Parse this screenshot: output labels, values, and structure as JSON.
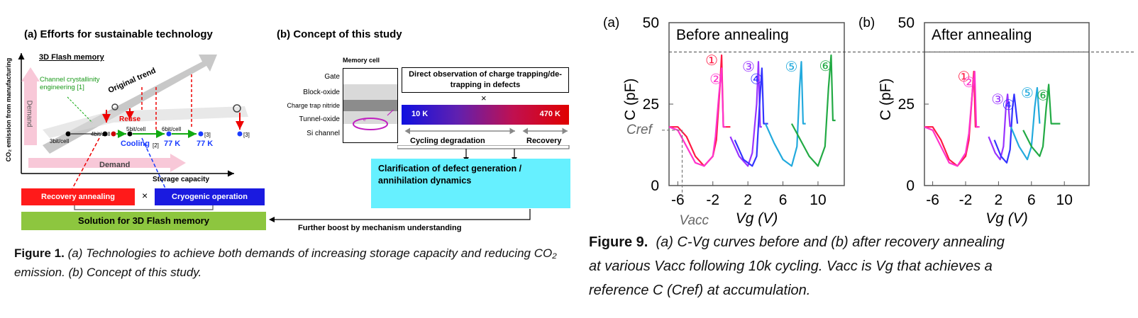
{
  "figure1": {
    "panel_a": {
      "title": "(a) Efforts for sustainable technology",
      "subtitle": "3D Flash memory",
      "ylabel": "CO₂ emission from manufacturing",
      "xlabel": "Storage capacity",
      "demand_vertical": "Demand",
      "demand_horizontal": "Demand",
      "original_trend": "Original trend",
      "channel_label": "Channel crystallinity engineering [1]",
      "reuse": "Reuse",
      "cooling": "Cooling",
      "cooling_ref": "[2]",
      "k77_a": "77 K",
      "k77_b": "77 K",
      "ref3": "[3]",
      "ref3b": "[3]",
      "node_labels": [
        "3bit/cell",
        "4bit/cell",
        "5bit/cell",
        "6bit/cell"
      ],
      "recovery": "Recovery annealing",
      "cross": "×",
      "cryogenic": "Cryogenic operation",
      "solution": "Solution for 3D Flash memory"
    },
    "panel_b": {
      "title": "(b) Concept of this study",
      "memory_cell": "Memory cell",
      "layers": [
        "Gate",
        "Block-oxide",
        "Charge trap nitride",
        "Tunnel-oxide",
        "Si channel"
      ],
      "direct_obs": "Direct observation of charge trapping/de-trapping in defects",
      "cross": "×",
      "temp_low": "10 K",
      "temp_high": "470 K",
      "cycling": "Cycling degradation",
      "recovery": "Recovery",
      "clarification": "Clarification of defect generation / annihilation dynamics",
      "boost": "Further boost by mechanism understanding"
    },
    "caption_label": "Figure 1.",
    "caption_text": "(a) Technologies to achieve both demands of increasing storage capacity and reducing CO₂ emission. (b) Concept of this study."
  },
  "figure9": {
    "caption_label": "Figure 9.",
    "caption_line1": "(a) C-Vg curves before and (b) after recovery annealing",
    "caption_line2": "at various Vacc following 10k cycling. Vacc is Vg that achieves a",
    "caption_line3": "reference C (Cref) at accumulation.",
    "cref_label": "Cref",
    "vacc_label": "Vacc"
  },
  "chart_data": [
    {
      "type": "line",
      "panel": "(a)",
      "title": "Before annealing",
      "xlabel": "Vg (V)",
      "ylabel": "C (pF)",
      "xlim": [
        -7,
        13
      ],
      "ylim": [
        0,
        50
      ],
      "xticks": [
        "-6",
        "-2",
        "2",
        "6",
        "10"
      ],
      "yticks": [
        "0",
        "25",
        "50"
      ],
      "reference_line_y": 41,
      "series": [
        {
          "name": "①",
          "color": "#ff1a44",
          "x": [
            -7,
            -6,
            -5,
            -4,
            -3,
            -2,
            -1.6,
            -1.2,
            -1.0,
            -0.8,
            -0.5,
            0
          ],
          "y": [
            18,
            18,
            15,
            9,
            6,
            9,
            14,
            30,
            40,
            18,
            18,
            18
          ]
        },
        {
          "name": "②",
          "color": "#ff33cc",
          "x": [
            -7,
            -6,
            -5,
            -4,
            -3,
            -2,
            -1.7,
            -1.3,
            -1.0,
            -0.8,
            -0.5
          ],
          "y": [
            18,
            17,
            12,
            7,
            6,
            9,
            15,
            28,
            36,
            18,
            18
          ]
        },
        {
          "name": "③",
          "color": "#9933ff",
          "x": [
            0,
            1,
            2,
            2.5,
            3.0,
            3.2,
            3.4,
            3.6
          ],
          "y": [
            15,
            9,
            6,
            10,
            25,
            38,
            18,
            18
          ]
        },
        {
          "name": "④",
          "color": "#3333ff",
          "x": [
            0.5,
            1.5,
            2.5,
            3.0,
            3.4,
            3.6,
            3.8,
            4.3
          ],
          "y": [
            14,
            8,
            6,
            9,
            28,
            36,
            19,
            19
          ]
        },
        {
          "name": "⑤",
          "color": "#22aadd",
          "x": [
            4,
            5,
            6,
            7,
            7.6,
            7.9,
            8.1,
            8.3,
            8.6
          ],
          "y": [
            19,
            13,
            8,
            6,
            12,
            30,
            38,
            19,
            19
          ]
        },
        {
          "name": "⑥",
          "color": "#22aa44",
          "x": [
            7,
            8,
            9,
            10,
            10.8,
            11.2,
            11.5,
            11.7,
            12
          ],
          "y": [
            19,
            14,
            9,
            6,
            12,
            30,
            40,
            20,
            20
          ]
        }
      ]
    },
    {
      "type": "line",
      "panel": "(b)",
      "title": "After annealing",
      "xlabel": "Vg (V)",
      "ylabel": "C (pF)",
      "xlim": [
        -7,
        13
      ],
      "ylim": [
        0,
        50
      ],
      "xticks": [
        "-6",
        "-2",
        "2",
        "6",
        "10"
      ],
      "yticks": [
        "0",
        "25",
        "50"
      ],
      "reference_line_y": 41,
      "series": [
        {
          "name": "①",
          "color": "#ff1a44",
          "x": [
            -7,
            -6,
            -5,
            -4,
            -3,
            -2,
            -1.6,
            -1.2,
            -1.0,
            -0.8,
            -0.5
          ],
          "y": [
            18,
            18,
            14,
            8,
            6,
            9,
            14,
            28,
            35,
            18,
            18
          ]
        },
        {
          "name": "②",
          "color": "#ff33cc",
          "x": [
            -7,
            -6,
            -5,
            -4,
            -3,
            -2,
            -1.6,
            -1.2,
            -0.9,
            -0.7,
            -0.3
          ],
          "y": [
            18,
            17,
            12,
            7,
            6,
            10,
            16,
            28,
            35,
            18,
            18
          ]
        },
        {
          "name": "③",
          "color": "#9933ff",
          "x": [
            0.8,
            1.6,
            2.2,
            2.6,
            2.9,
            3.1,
            3.4
          ],
          "y": [
            15,
            10,
            8,
            12,
            24,
            28,
            18
          ]
        },
        {
          "name": "④",
          "color": "#3333ff",
          "x": [
            1.5,
            2.3,
            3.0,
            3.4,
            3.7,
            3.9,
            4.3
          ],
          "y": [
            14,
            9,
            7,
            11,
            24,
            28,
            19
          ]
        },
        {
          "name": "⑤",
          "color": "#22aadd",
          "x": [
            3.5,
            4.5,
            5.5,
            6.0,
            6.4,
            6.7,
            7.0
          ],
          "y": [
            18,
            12,
            8,
            12,
            24,
            30,
            19
          ]
        },
        {
          "name": "⑥",
          "color": "#22aa44",
          "x": [
            5,
            6,
            7,
            7.4,
            7.8,
            8.1,
            8.4,
            9.5
          ],
          "y": [
            17,
            12,
            9,
            12,
            24,
            31,
            19,
            19
          ]
        }
      ]
    }
  ]
}
